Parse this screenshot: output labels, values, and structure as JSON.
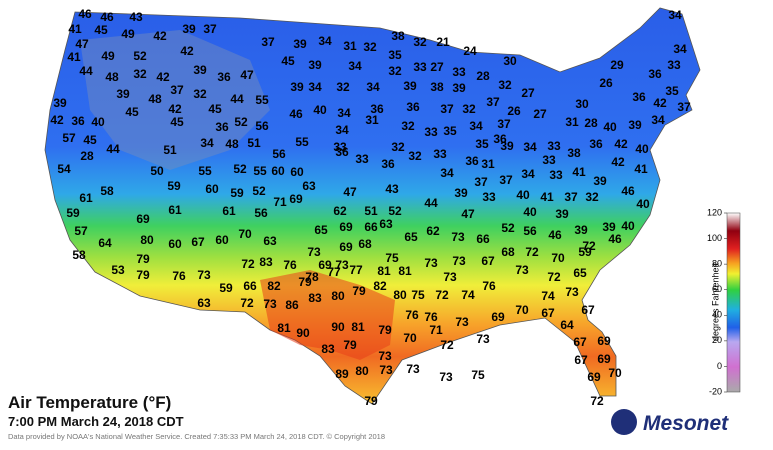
{
  "title": "Air Temperature (°F)",
  "timestamp": "7:00 PM March 24, 2018 CDT",
  "credit": "Data provided by NOAA's National Weather Service. Created 7:35:33 PM March 24, 2018 CDT. © Copyright 2018",
  "logo": "Mesonet",
  "colorbar": {
    "label": "degrees Fahrenheit",
    "ticks": [
      -20,
      0,
      20,
      40,
      60,
      80,
      100,
      120
    ]
  },
  "stations": [
    46,
    46,
    43,
    41,
    45,
    49,
    39,
    37,
    42,
    37,
    39,
    34,
    31,
    32,
    38,
    32,
    21,
    24,
    34,
    47,
    42,
    41,
    49,
    52,
    45,
    39,
    34,
    35,
    33,
    32,
    27,
    30,
    29,
    34,
    33,
    44,
    48,
    32,
    42,
    39,
    36,
    47,
    33,
    28,
    36,
    26,
    39,
    39,
    48,
    37,
    32,
    44,
    55,
    39,
    34,
    32,
    34,
    39,
    38,
    39,
    32,
    36,
    42,
    35,
    45,
    42,
    45,
    45,
    46,
    40,
    34,
    36,
    36,
    37,
    32,
    37,
    26,
    27,
    27,
    30,
    31,
    28,
    40,
    39,
    34,
    37,
    42,
    36,
    40,
    36,
    52,
    56,
    34,
    31,
    32,
    33,
    35,
    34,
    37,
    36,
    57,
    45,
    34,
    48,
    51,
    55,
    33,
    32,
    35,
    39,
    34,
    33,
    36,
    42,
    40,
    28,
    44,
    51,
    56,
    36,
    33,
    32,
    33,
    36,
    38,
    33,
    42,
    41,
    54,
    50,
    55,
    52,
    55,
    60,
    60,
    36,
    31,
    34,
    39,
    37,
    37,
    34,
    33,
    41,
    39,
    46,
    58,
    61,
    59,
    60,
    59,
    52,
    63,
    47,
    43,
    33,
    40,
    41,
    37,
    32,
    59,
    61,
    61,
    56,
    71,
    69,
    62,
    51,
    52,
    44,
    47,
    40,
    39,
    40,
    57,
    69,
    65,
    69,
    66,
    63,
    62,
    52,
    56,
    46,
    39,
    39,
    40,
    64,
    80,
    60,
    67,
    60,
    70,
    63,
    73,
    69,
    68,
    65,
    73,
    66,
    46,
    59,
    58,
    79,
    72,
    76,
    69,
    73,
    75,
    73,
    73,
    67,
    68,
    72,
    70,
    72,
    53,
    79,
    76,
    73,
    78,
    77,
    77,
    81,
    81,
    73,
    73,
    72,
    65,
    59,
    66,
    82,
    83,
    79,
    75,
    72,
    74,
    76,
    74,
    73,
    63,
    72,
    73,
    86,
    83,
    80,
    79,
    82,
    80,
    70,
    69,
    67,
    67,
    81,
    90,
    90,
    81,
    79,
    76,
    76,
    71,
    73,
    64,
    83,
    79,
    72,
    73,
    70,
    73,
    67,
    69,
    89,
    80,
    73,
    73,
    73,
    75,
    67,
    69,
    69,
    70,
    79,
    72
  ]
}
